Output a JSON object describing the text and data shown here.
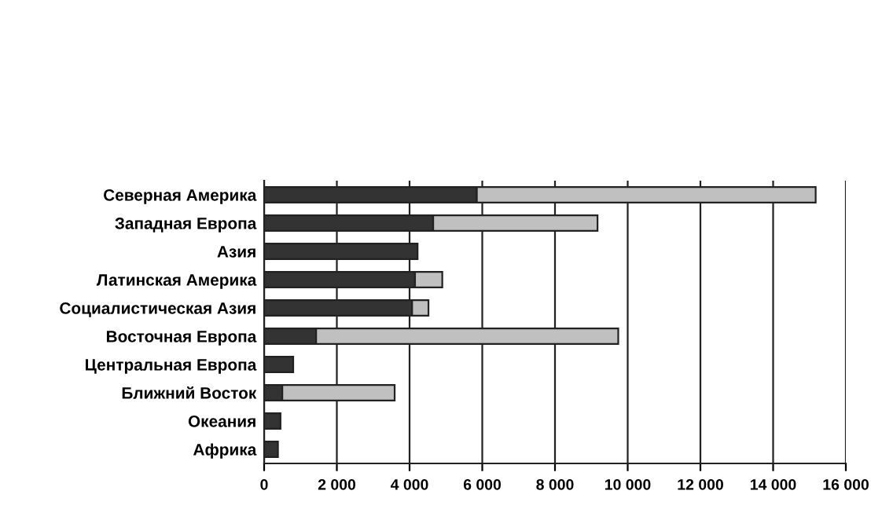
{
  "chart_data": {
    "type": "bar",
    "orientation": "horizontal",
    "stacked": true,
    "categories": [
      "Северная Америка",
      "Западная Европа",
      "Азия",
      "Латинская Америка",
      "Социалистическая Азия",
      "Восточная Европа",
      "Центральная Европа",
      "Ближний Восток",
      "Океания",
      "Африка"
    ],
    "series": [
      {
        "color": "#333333",
        "values": [
          5850,
          4650,
          4220,
          4150,
          4070,
          1430,
          800,
          500,
          450,
          380
        ]
      },
      {
        "color": "#c0c0c0",
        "values": [
          9320,
          4520,
          null,
          750,
          450,
          8310,
          null,
          3090,
          null,
          null
        ]
      }
    ],
    "xlim": [
      0,
      16000
    ],
    "xticks": [
      {
        "value": 0,
        "label": "0"
      },
      {
        "value": 2000,
        "label": "2 000"
      },
      {
        "value": 4000,
        "label": "4 000"
      },
      {
        "value": 6000,
        "label": "6 000"
      },
      {
        "value": 8000,
        "label": "8 000"
      },
      {
        "value": 10000,
        "label": "10 000"
      },
      {
        "value": 12000,
        "label": "12 000"
      },
      {
        "value": 14000,
        "label": "14 000"
      },
      {
        "value": 16000,
        "label": "16 000"
      }
    ],
    "grid": "x",
    "legend": false
  }
}
